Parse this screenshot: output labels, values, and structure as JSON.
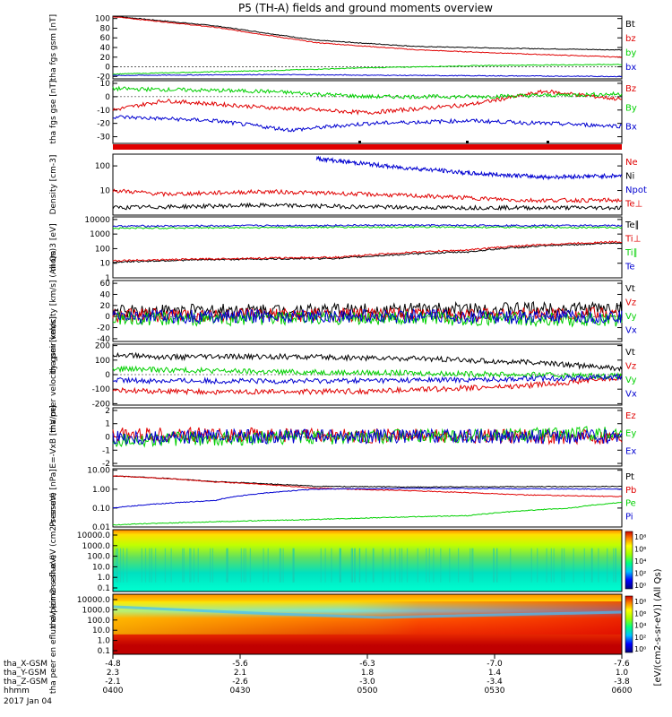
{
  "title": "P5 (TH-A) fields and ground moments overview",
  "footer": {
    "rows": [
      {
        "label": "tha_X-GSM",
        "values": [
          "-4.8",
          "-5.6",
          "-6.3",
          "-7.0",
          "-7.6"
        ]
      },
      {
        "label": "tha_Y-GSM",
        "values": [
          "2.3",
          "2.1",
          "1.8",
          "1.4",
          "1.0"
        ]
      },
      {
        "label": "tha_Z-GSM",
        "values": [
          "-2.1",
          "-2.6",
          "-3.0",
          "-3.4",
          "-3.8"
        ]
      },
      {
        "label": "hhmm",
        "values": [
          "0400",
          "0430",
          "0500",
          "0530",
          "0600"
        ]
      }
    ],
    "date": "2017 Jan 04"
  },
  "colorbar_label": "[eV/(cm2-s-sr-eV)] (All Qs)",
  "colorbar_ticks": [
    "10⁸",
    "10⁶",
    "10⁴",
    "10²",
    "10⁰"
  ],
  "colors": {
    "black": "#000000",
    "red": "#e00000",
    "green": "#00d000",
    "blue": "#0000d0"
  },
  "chart_data": [
    {
      "id": "fgs_gsm",
      "type": "line",
      "ylabel": "tha fgs gsm [nT]",
      "ticks": [
        "100",
        "80",
        "60",
        "40",
        "20",
        "0",
        "-20"
      ],
      "ylim": [
        -25,
        105
      ],
      "series": [
        {
          "name": "Bt",
          "color": "black",
          "points": [
            [
              0,
              105
            ],
            [
              0.2,
              85
            ],
            [
              0.4,
              55
            ],
            [
              0.6,
              42
            ],
            [
              0.8,
              38
            ],
            [
              1,
              35
            ]
          ]
        },
        {
          "name": "bz",
          "color": "red",
          "points": [
            [
              0,
              104
            ],
            [
              0.2,
              82
            ],
            [
              0.4,
              50
            ],
            [
              0.6,
              35
            ],
            [
              0.8,
              27
            ],
            [
              1,
              20
            ]
          ]
        },
        {
          "name": "by",
          "color": "green",
          "points": [
            [
              0,
              -15
            ],
            [
              0.3,
              -8
            ],
            [
              0.5,
              -2
            ],
            [
              0.75,
              3
            ],
            [
              1,
              5
            ]
          ]
        },
        {
          "name": "bx",
          "color": "blue",
          "points": [
            [
              0,
              -18
            ],
            [
              0.3,
              -16
            ],
            [
              0.6,
              -18
            ],
            [
              1,
              -20
            ]
          ]
        }
      ]
    },
    {
      "id": "fgs_gse",
      "type": "line",
      "ylabel": "tha fgs gse [nT]",
      "ticks": [
        "10",
        "0",
        "-10",
        "-20",
        "-30"
      ],
      "ylim": [
        -35,
        12
      ],
      "series": [
        {
          "name": "Bz",
          "color": "red",
          "points": [
            [
              0,
              -10
            ],
            [
              0.1,
              -3
            ],
            [
              0.3,
              -8
            ],
            [
              0.5,
              -12
            ],
            [
              0.7,
              -6
            ],
            [
              0.85,
              4
            ],
            [
              1,
              -2
            ]
          ]
        },
        {
          "name": "By",
          "color": "green",
          "points": [
            [
              0,
              6
            ],
            [
              0.3,
              4
            ],
            [
              0.5,
              0
            ],
            [
              0.7,
              0
            ],
            [
              1,
              2
            ]
          ]
        },
        {
          "name": "Bx",
          "color": "blue",
          "points": [
            [
              0,
              -15
            ],
            [
              0.2,
              -18
            ],
            [
              0.35,
              -25
            ],
            [
              0.5,
              -20
            ],
            [
              0.7,
              -18
            ],
            [
              1,
              -22
            ]
          ]
        }
      ]
    },
    {
      "id": "density",
      "type": "line",
      "log": true,
      "ylabel": "Density [cm-3]",
      "ticks": [
        "100",
        "10"
      ],
      "ylim": [
        1,
        300
      ],
      "series": [
        {
          "name": "Ne",
          "color": "red",
          "points": [
            [
              0,
              10
            ],
            [
              0.1,
              7
            ],
            [
              0.3,
              9
            ],
            [
              0.6,
              6
            ],
            [
              0.8,
              4
            ],
            [
              1,
              4
            ]
          ]
        },
        {
          "name": "Ni",
          "color": "black",
          "points": [
            [
              0,
              2
            ],
            [
              0.3,
              2.5
            ],
            [
              0.6,
              2
            ],
            [
              1,
              2
            ]
          ]
        },
        {
          "name": "Npot",
          "color": "blue",
          "points": [
            [
              0.4,
              200
            ],
            [
              0.45,
              150
            ],
            [
              0.55,
              90
            ],
            [
              0.7,
              50
            ],
            [
              0.85,
              35
            ],
            [
              1,
              40
            ]
          ]
        },
        {
          "name": "Te⊥",
          "color": "red",
          "points": []
        }
      ]
    },
    {
      "id": "temperature",
      "type": "line",
      "log": true,
      "ylabel": "mom 3 [eV]",
      "ticks": [
        "10000",
        "1000",
        "100",
        "10",
        "1"
      ],
      "ylim": [
        1,
        15000
      ],
      "series": [
        {
          "name": "Te∥",
          "color": "black",
          "points": [
            [
              0,
              12
            ],
            [
              0.2,
              18
            ],
            [
              0.45,
              22
            ],
            [
              0.7,
              60
            ],
            [
              1,
              250
            ]
          ]
        },
        {
          "name": "Ti⊥",
          "color": "red",
          "points": [
            [
              0,
              15
            ],
            [
              0.2,
              20
            ],
            [
              0.45,
              26
            ],
            [
              0.7,
              80
            ],
            [
              1,
              300
            ]
          ]
        },
        {
          "name": "Ti∥",
          "color": "green",
          "points": [
            [
              0,
              2500
            ],
            [
              0.5,
              3000
            ],
            [
              1,
              2800
            ]
          ]
        },
        {
          "name": "Te",
          "color": "blue",
          "points": [
            [
              0,
              3500
            ],
            [
              0.5,
              4000
            ],
            [
              1,
              3800
            ]
          ]
        }
      ]
    },
    {
      "id": "vel_all",
      "type": "line",
      "ylabel": "tha peir velocity [km/s] (All Qs)",
      "ticks": [
        "60",
        "40",
        "20",
        "0",
        "-20",
        "-40"
      ],
      "ylim": [
        -45,
        65
      ],
      "series": [
        {
          "name": "Vt",
          "color": "black",
          "points": [
            [
              0,
              10
            ],
            [
              0.5,
              12
            ],
            [
              1,
              15
            ]
          ]
        },
        {
          "name": "Vz",
          "color": "red",
          "points": [
            [
              0,
              2
            ],
            [
              0.5,
              3
            ],
            [
              1,
              5
            ]
          ]
        },
        {
          "name": "Vy",
          "color": "green",
          "points": [
            [
              0,
              -5
            ],
            [
              0.5,
              -3
            ],
            [
              1,
              -6
            ]
          ]
        },
        {
          "name": "Vx",
          "color": "blue",
          "points": [
            [
              0,
              0
            ],
            [
              0.5,
              1
            ],
            [
              1,
              -2
            ]
          ]
        }
      ]
    },
    {
      "id": "vel_gsm",
      "type": "line",
      "ylabel": "tha peer velocity gsm [km/s]",
      "ticks": [
        "200",
        "100",
        "0",
        "-100",
        "-200"
      ],
      "ylim": [
        -210,
        210
      ],
      "series": [
        {
          "name": "Vt",
          "color": "black",
          "points": [
            [
              0,
              140
            ],
            [
              0.1,
              120
            ],
            [
              0.3,
              125
            ],
            [
              0.6,
              110
            ],
            [
              0.85,
              80
            ],
            [
              1,
              40
            ]
          ]
        },
        {
          "name": "Vz",
          "color": "red",
          "points": [
            [
              0,
              -110
            ],
            [
              0.2,
              -120
            ],
            [
              0.5,
              -115
            ],
            [
              0.8,
              -80
            ],
            [
              1,
              -20
            ]
          ]
        },
        {
          "name": "Vy",
          "color": "green",
          "points": [
            [
              0,
              40
            ],
            [
              0.3,
              20
            ],
            [
              0.6,
              10
            ],
            [
              1,
              -10
            ]
          ]
        },
        {
          "name": "Vx",
          "color": "blue",
          "points": [
            [
              0,
              -40
            ],
            [
              0.3,
              -45
            ],
            [
              0.7,
              -35
            ],
            [
              1,
              -15
            ]
          ]
        }
      ]
    },
    {
      "id": "exb",
      "type": "line",
      "ylabel": "E=-VxB [mV/m]",
      "ticks": [
        "2",
        "1",
        "0",
        "-1",
        "-2"
      ],
      "ylim": [
        -2.2,
        2.2
      ],
      "series": [
        {
          "name": "Ez",
          "color": "red",
          "points": [
            [
              0,
              0.2
            ],
            [
              0.5,
              0.1
            ],
            [
              1,
              0
            ]
          ]
        },
        {
          "name": "Ey",
          "color": "green",
          "points": [
            [
              0,
              -0.2
            ],
            [
              0.5,
              0
            ],
            [
              1,
              0.3
            ]
          ]
        },
        {
          "name": "Ex",
          "color": "blue",
          "points": [
            [
              0,
              0
            ],
            [
              0.5,
              0.05
            ],
            [
              1,
              0
            ]
          ]
        }
      ]
    },
    {
      "id": "pressure",
      "type": "line",
      "log": true,
      "ylabel": "Pressure [nPa]",
      "ticks": [
        "10.00",
        "1.00",
        "0.10",
        "0.01"
      ],
      "ylim": [
        0.01,
        12
      ],
      "series": [
        {
          "name": "Pt",
          "color": "black",
          "points": [
            [
              0,
              5
            ],
            [
              0.2,
              2.5
            ],
            [
              0.4,
              1.4
            ],
            [
              0.6,
              1.3
            ],
            [
              1,
              1.4
            ]
          ]
        },
        {
          "name": "Pb",
          "color": "red",
          "points": [
            [
              0,
              5
            ],
            [
              0.2,
              2.4
            ],
            [
              0.4,
              1.1
            ],
            [
              0.6,
              0.8
            ],
            [
              0.8,
              0.5
            ],
            [
              1,
              0.4
            ]
          ]
        },
        {
          "name": "Pe",
          "color": "green",
          "points": [
            [
              0,
              0.013
            ],
            [
              0.4,
              0.025
            ],
            [
              0.7,
              0.04
            ],
            [
              0.9,
              0.1
            ],
            [
              1,
              0.2
            ]
          ]
        },
        {
          "name": "Pi",
          "color": "blue",
          "points": [
            [
              0,
              0.1
            ],
            [
              0.2,
              0.25
            ],
            [
              0.4,
              1.0
            ],
            [
              0.6,
              1.1
            ],
            [
              1,
              1.0
            ]
          ]
        }
      ]
    },
    {
      "id": "ion_spec",
      "type": "heatmap",
      "ylabel": "tha peir en eflux eV (cm2-s-sr-eV)",
      "ticks": [
        "10000.0",
        "1000.0",
        "100.0",
        "10.0",
        "1.0",
        "0.1"
      ]
    },
    {
      "id": "ele_spec",
      "type": "heatmap",
      "ylabel": "tha peer en eflux eV (cm2-s-sr-eV)",
      "ticks": [
        "10000.0",
        "1000.0",
        "100.0",
        "10.0",
        "1.0",
        "0.1"
      ]
    }
  ]
}
